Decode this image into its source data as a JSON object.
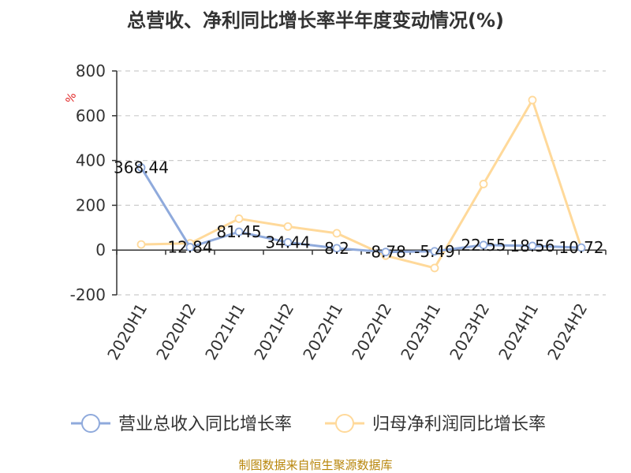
{
  "colors": {
    "series_a": "#8faadc",
    "series_b": "#ffd99a",
    "source": "#b8860b",
    "unit": "#e02020"
  },
  "footer": {
    "source": "制图数据来自恒生聚源数据库"
  },
  "chart_data": {
    "type": "line",
    "title": "总营收、净利同比增长率半年度变动情况(%)",
    "unit": "%",
    "categories": [
      "2020H1",
      "2020H2",
      "2021H1",
      "2021H2",
      "2022H1",
      "2022H2",
      "2023H1",
      "2023H2",
      "2024H1",
      "2024H2"
    ],
    "ylim": [
      -200,
      800
    ],
    "yticks": [
      -200,
      0,
      200,
      400,
      600,
      800
    ],
    "grid": true,
    "legend_position": "bottom",
    "series": [
      {
        "name": "营业总收入同比增长率",
        "values": [
          368.44,
          12.84,
          81.45,
          34.44,
          8.2,
          -8.78,
          -5.49,
          22.55,
          18.56,
          10.72
        ],
        "labels": [
          "368.44",
          "12.84",
          "81.45",
          "34.44",
          "8.2",
          "-8.78",
          "-5.49",
          "22.55",
          "18.56",
          "10.72"
        ]
      },
      {
        "name": "归母净利润同比增长率",
        "values": [
          25,
          30,
          140,
          105,
          75,
          -25,
          -80,
          295,
          670,
          10
        ]
      }
    ]
  }
}
